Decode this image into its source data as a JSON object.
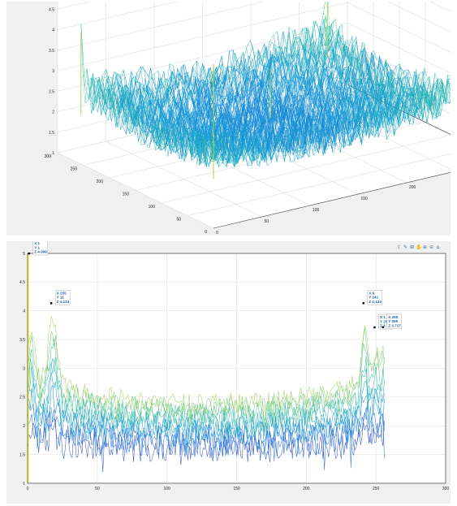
{
  "chart_data": [
    {
      "type": "surface",
      "title": "",
      "xlabel": "",
      "ylabel": "",
      "zlabel": "",
      "xlim": [
        0,
        300
      ],
      "ylim": [
        0,
        300
      ],
      "zlim": [
        1,
        5
      ],
      "x_ticks": [
        "0",
        "50",
        "100",
        "150",
        "200",
        "250",
        "300"
      ],
      "y_ticks": [
        "0",
        "50",
        "100",
        "150",
        "200",
        "250",
        "300"
      ],
      "z_ticks": [
        "1",
        "1.5",
        "2",
        "2.5",
        "3",
        "3.5",
        "4",
        "4.5",
        "5"
      ],
      "grid": true,
      "colormap": "parula (blue to yellow)",
      "grid_size": 256,
      "peaks": [
        {
          "x": 1,
          "y": 1,
          "z": 4.999
        },
        {
          "x": 255,
          "y": 1,
          "z": 3.9
        },
        {
          "x": 1,
          "y": 255,
          "z": 3.7
        },
        {
          "x": 255,
          "y": 255,
          "z": 3.7
        },
        {
          "x": 128,
          "y": 128,
          "z": 3.5
        }
      ],
      "surface_floor_mean": 2.3
    },
    {
      "type": "line",
      "title": "",
      "xlabel": "",
      "ylabel": "",
      "xlim": [
        0,
        300
      ],
      "ylim": [
        1,
        5
      ],
      "x_ticks": [
        "0",
        "50",
        "100",
        "150",
        "200",
        "250",
        "300"
      ],
      "y_ticks": [
        "1",
        "1.5",
        "2",
        "2.5",
        "3",
        "3.5",
        "4",
        "4.5",
        "5"
      ],
      "grid": true,
      "view": "side projection of the surface (X–Z plane)",
      "datatips": [
        {
          "x_label": "X 1",
          "y_label": "Y 1",
          "z_label": "Z 4.999",
          "x": 1,
          "y": 1,
          "z": 4.999
        },
        {
          "x_label": "X 255",
          "y_label": "Y 11",
          "z_label": "Z 4.134",
          "x": 17,
          "z": 4.134
        },
        {
          "x_label": "X 8",
          "y_label": "Y 241",
          "z_label": "Z 4.134",
          "x": 241,
          "z": 4.134
        },
        {
          "x_label": "X 1",
          "y_label": "Y 255",
          "z_label": "Z 3.713",
          "x": 249,
          "z": 3.713
        },
        {
          "x_label": "X 255",
          "y_label": "Y 255",
          "z_label": "Z 3.717",
          "x": 255,
          "z": 3.717
        }
      ]
    }
  ],
  "toolbar": {
    "icons": [
      "export-icon",
      "brush-icon",
      "datatip-icon",
      "pan-icon",
      "zoom-in-icon",
      "zoom-out-icon",
      "home-icon"
    ]
  }
}
